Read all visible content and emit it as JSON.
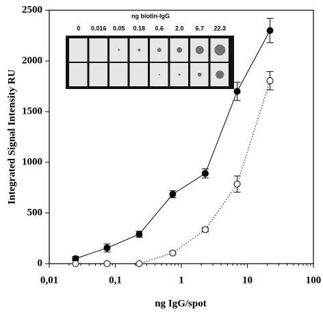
{
  "chart_data": {
    "type": "line",
    "x_label": "ng IgG/spot",
    "y_label": "Integrated Signal Intensity RU",
    "x_scale": "log",
    "xlim": [
      0.01,
      100
    ],
    "xticks": [
      {
        "value": 0.01,
        "label": "0,01"
      },
      {
        "value": 0.1,
        "label": "0,1"
      },
      1,
      10,
      100
    ],
    "ylim": [
      0,
      2500
    ],
    "yticks": [
      0,
      500,
      1000,
      1500,
      2000,
      2500
    ],
    "grid": false,
    "series": [
      {
        "color": "#000000",
        "marker": "filled",
        "line_style": "solid",
        "x": [
          0.025,
          0.075,
          0.23,
          0.74,
          2.3,
          7,
          22
        ],
        "values": [
          50,
          155,
          290,
          685,
          890,
          1700,
          2300
        ],
        "errors": [
          20,
          40,
          30,
          35,
          45,
          90,
          120
        ]
      },
      {
        "color": "#000000",
        "marker": "open",
        "line_style": "dotted",
        "x": [
          0.025,
          0.075,
          0.23,
          0.74,
          2.3,
          7,
          22
        ],
        "values": [
          0,
          0,
          0,
          105,
          335,
          785,
          1805
        ],
        "errors": [
          0,
          0,
          0,
          15,
          20,
          80,
          90
        ]
      }
    ],
    "inset": {
      "title": "ng biotin-IgG",
      "labels": [
        "0",
        "0.016",
        "0.05",
        "0.18",
        "0.6",
        "2.0",
        "6.7",
        "22.3"
      ]
    }
  }
}
